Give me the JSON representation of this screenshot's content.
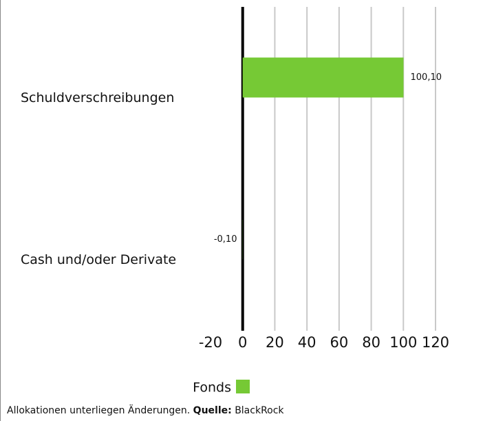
{
  "chart_data": {
    "type": "barh",
    "categories": [
      "Schuldverschreibungen",
      "Cash und/oder Derivate"
    ],
    "series": [
      {
        "name": "Fonds",
        "color": "#76c935",
        "values": [
          100.1,
          -0.1
        ],
        "value_labels": [
          "100,10",
          "-0,10"
        ]
      }
    ],
    "xlim": [
      -20,
      120
    ],
    "xticks": [
      -20,
      0,
      20,
      40,
      60,
      80,
      100,
      120
    ],
    "grid": true,
    "legend": "bottom",
    "footer": {
      "text": "Allokationen unterliegen Änderungen.",
      "source_label": "Quelle:",
      "source": "BlackRock"
    }
  }
}
